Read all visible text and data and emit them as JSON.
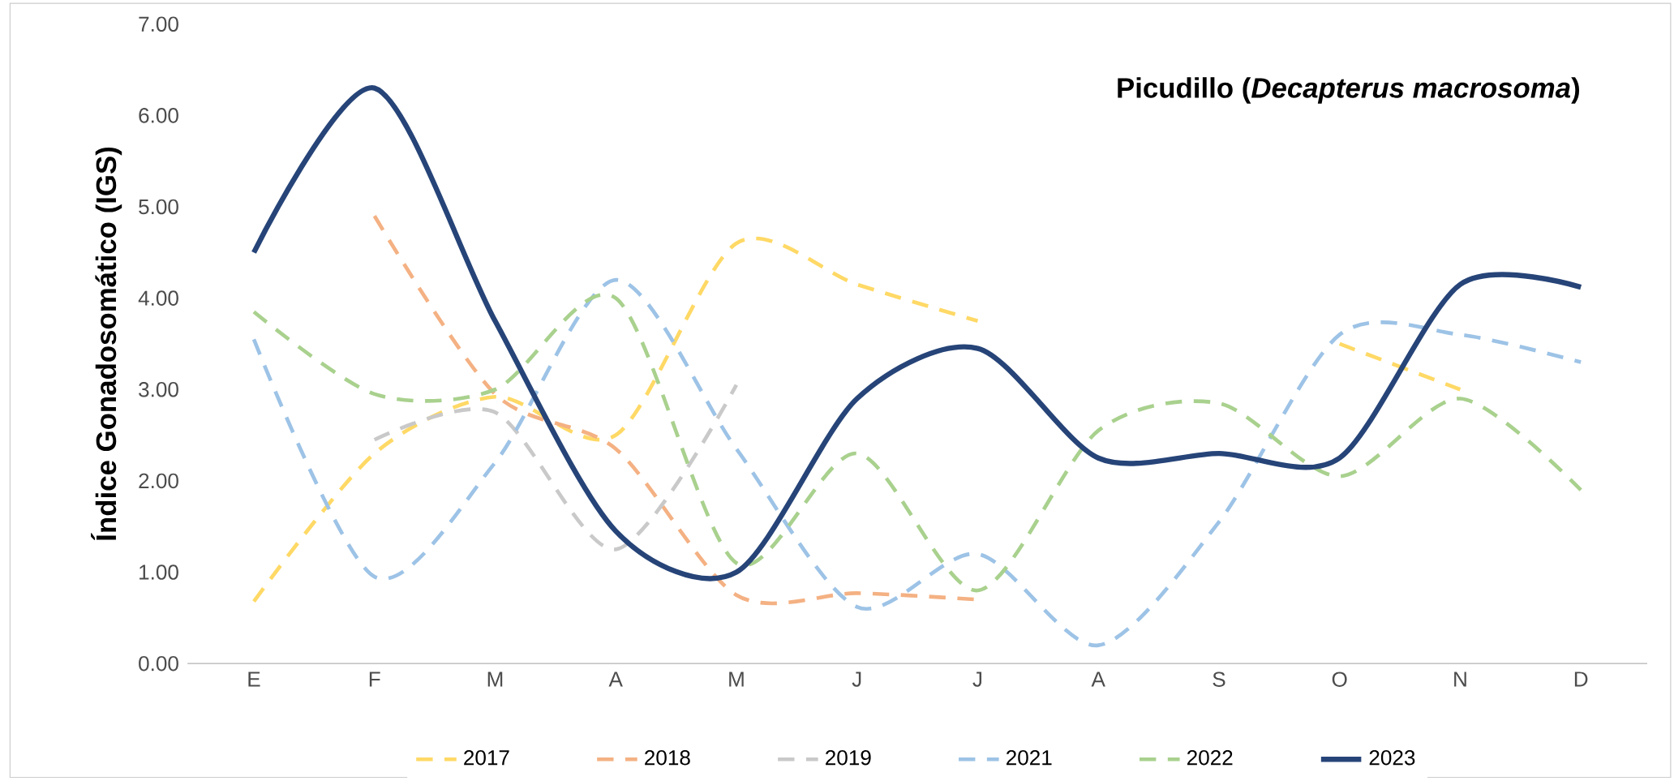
{
  "chart_data": {
    "type": "line",
    "title": "**Picudillo (*Decapterus macrosoma*)**",
    "ylabel": "Índice Gonadosomático (IGS)",
    "categories": [
      "E",
      "F",
      "M",
      "A",
      "M",
      "J",
      "J",
      "A",
      "S",
      "O",
      "N",
      "D"
    ],
    "ylim": [
      0,
      7
    ],
    "yticks": [
      {
        "value": 0,
        "label": "0.00"
      },
      {
        "value": 1,
        "label": "1.00"
      },
      {
        "value": 2,
        "label": "2.00"
      },
      {
        "value": 3,
        "label": "3.00"
      },
      {
        "value": 4,
        "label": "4.00"
      },
      {
        "value": 5,
        "label": "5.00"
      },
      {
        "value": 6,
        "label": "6.00"
      },
      {
        "value": 7,
        "label": "7.00"
      }
    ],
    "grid": false,
    "legend": "bottom",
    "marker": "none",
    "series": [
      {
        "name": "2017",
        "color": "#ffd966",
        "line_style": "dashed",
        "values": [
          0.68,
          2.3,
          2.92,
          2.5,
          4.6,
          4.15,
          3.75,
          null,
          null,
          3.5,
          3.0,
          null
        ]
      },
      {
        "name": "2018",
        "color": "#f4b183",
        "line_style": "dashed",
        "values": [
          null,
          4.9,
          2.95,
          2.35,
          0.75,
          0.77,
          0.7,
          null,
          null,
          null,
          null,
          null
        ]
      },
      {
        "name": "2019",
        "color": "#c9c9c9",
        "line_style": "dashed",
        "values": [
          null,
          2.45,
          2.75,
          1.25,
          3.05,
          null,
          null,
          null,
          null,
          null,
          null,
          null
        ]
      },
      {
        "name": "2021",
        "color": "#9dc3e6",
        "line_style": "dashed",
        "values": [
          3.55,
          0.95,
          2.2,
          4.2,
          2.35,
          0.62,
          1.2,
          0.2,
          1.55,
          3.6,
          3.6,
          3.3
        ]
      },
      {
        "name": "2022",
        "color": "#a9d18e",
        "line_style": "dashed",
        "values": [
          3.85,
          2.95,
          3.0,
          4.0,
          1.1,
          2.3,
          0.8,
          2.55,
          2.85,
          2.05,
          2.9,
          1.9
        ]
      },
      {
        "name": "2023",
        "color": "#264478",
        "line_style": "solid",
        "values": [
          4.5,
          6.3,
          3.75,
          1.45,
          1.0,
          2.9,
          3.45,
          2.25,
          2.3,
          2.25,
          4.15,
          4.12
        ]
      }
    ]
  }
}
